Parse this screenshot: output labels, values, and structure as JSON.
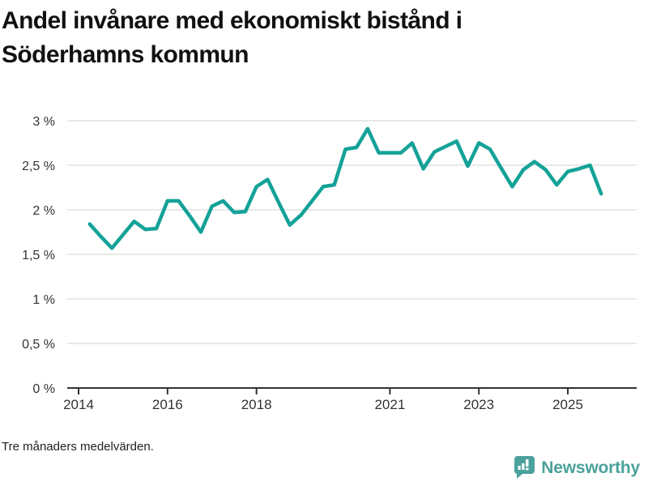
{
  "header": {
    "title": "Andel invånare med ekonomiskt bistånd i Söderhamns kommun"
  },
  "footer": {
    "note": "Tre månaders medelvärden.",
    "brand": "Newsworthy"
  },
  "colors": {
    "line": "#14a298",
    "grid": "#e2e2e2",
    "axis": "#333333",
    "tick_label": "#333333",
    "title": "#111111",
    "brand_teal": "#4ba19c"
  },
  "chart_data": {
    "type": "line",
    "title": "Andel invånare med ekonomiskt bistånd i Söderhamns kommun",
    "xlabel": "",
    "ylabel": "",
    "ylim": [
      0,
      3
    ],
    "xlim": [
      2013.75,
      2026.55
    ],
    "grid": true,
    "legend": false,
    "y_ticks": [
      {
        "value": 0,
        "label": "0 %"
      },
      {
        "value": 0.5,
        "label": "0,5 %"
      },
      {
        "value": 1,
        "label": "1 %"
      },
      {
        "value": 1.5,
        "label": "1,5 %"
      },
      {
        "value": 2,
        "label": "2 %"
      },
      {
        "value": 2.5,
        "label": "2,5 %"
      },
      {
        "value": 3,
        "label": "3 %"
      }
    ],
    "x_ticks": [
      {
        "value": 2014,
        "label": "2014"
      },
      {
        "value": 2016,
        "label": "2016"
      },
      {
        "value": 2018,
        "label": "2018"
      },
      {
        "value": 2021,
        "label": "2021"
      },
      {
        "value": 2023,
        "label": "2023"
      },
      {
        "value": 2025,
        "label": "2025"
      }
    ],
    "series": [
      {
        "name": "Andel invånare med ekonomiskt bistånd",
        "points": [
          [
            2014.25,
            1.84
          ],
          [
            2014.5,
            1.7
          ],
          [
            2014.75,
            1.57
          ],
          [
            2015.0,
            1.72
          ],
          [
            2015.25,
            1.87
          ],
          [
            2015.5,
            1.78
          ],
          [
            2015.75,
            1.79
          ],
          [
            2016.0,
            2.1
          ],
          [
            2016.25,
            2.1
          ],
          [
            2016.5,
            1.93
          ],
          [
            2016.75,
            1.75
          ],
          [
            2017.0,
            2.04
          ],
          [
            2017.25,
            2.1
          ],
          [
            2017.5,
            1.97
          ],
          [
            2017.75,
            1.98
          ],
          [
            2018.0,
            2.26
          ],
          [
            2018.25,
            2.34
          ],
          [
            2018.5,
            2.08
          ],
          [
            2018.75,
            1.83
          ],
          [
            2019.0,
            1.94
          ],
          [
            2019.25,
            2.1
          ],
          [
            2019.5,
            2.26
          ],
          [
            2019.75,
            2.28
          ],
          [
            2020.0,
            2.68
          ],
          [
            2020.25,
            2.7
          ],
          [
            2020.5,
            2.91
          ],
          [
            2020.75,
            2.64
          ],
          [
            2021.0,
            2.64
          ],
          [
            2021.25,
            2.64
          ],
          [
            2021.5,
            2.75
          ],
          [
            2021.75,
            2.46
          ],
          [
            2022.0,
            2.65
          ],
          [
            2022.25,
            2.71
          ],
          [
            2022.5,
            2.77
          ],
          [
            2022.75,
            2.49
          ],
          [
            2023.0,
            2.75
          ],
          [
            2023.25,
            2.68
          ],
          [
            2023.5,
            2.47
          ],
          [
            2023.75,
            2.26
          ],
          [
            2024.0,
            2.45
          ],
          [
            2024.25,
            2.54
          ],
          [
            2024.5,
            2.45
          ],
          [
            2024.75,
            2.28
          ],
          [
            2025.0,
            2.43
          ],
          [
            2025.25,
            2.46
          ],
          [
            2025.5,
            2.5
          ],
          [
            2025.75,
            2.18
          ]
        ]
      }
    ]
  }
}
